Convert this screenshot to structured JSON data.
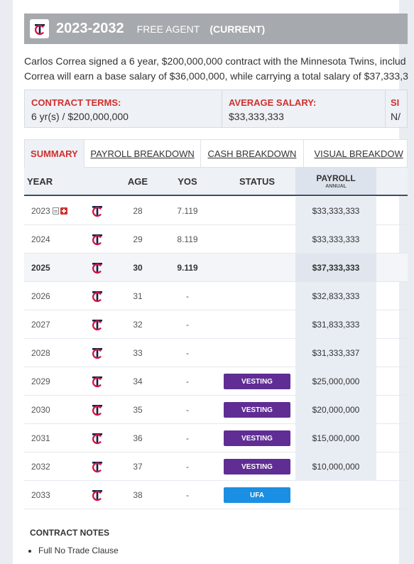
{
  "header": {
    "years": "2023-2032",
    "status": "FREE AGENT",
    "current": "(CURRENT)"
  },
  "description": {
    "line1": "Carlos Correa signed a 6 year, $200,000,000 contract with the Minnesota Twins, includ",
    "line2": "Correa will earn a base salary of $36,000,000, while carrying a total salary of $37,333,3"
  },
  "terms": {
    "contract_label": "CONTRACT TERMS:",
    "contract_value": "6 yr(s) / $200,000,000",
    "avg_label": "AVERAGE SALARY:",
    "avg_value": "$33,333,333",
    "third_label": "SI",
    "third_value": "N/"
  },
  "tabs": [
    "SUMMARY",
    "PAYROLL BREAKDOWN",
    "CASH BREAKDOWN",
    "VISUAL BREAKDOW"
  ],
  "table": {
    "headers": {
      "year": "YEAR",
      "age": "AGE",
      "yos": "YOS",
      "status": "STATUS",
      "payroll": "PAYROLL",
      "payroll_sub": "ANNUAL"
    },
    "rows": [
      {
        "year": "2023",
        "age": "28",
        "yos": "7.119",
        "status": "",
        "payroll": "$33,333,333"
      },
      {
        "year": "2024",
        "age": "29",
        "yos": "8.119",
        "status": "",
        "payroll": "$33,333,333"
      },
      {
        "year": "2025",
        "age": "30",
        "yos": "9.119",
        "status": "",
        "payroll": "$37,333,333"
      },
      {
        "year": "2026",
        "age": "31",
        "yos": "-",
        "status": "",
        "payroll": "$32,833,333"
      },
      {
        "year": "2027",
        "age": "32",
        "yos": "-",
        "status": "",
        "payroll": "$31,833,333"
      },
      {
        "year": "2028",
        "age": "33",
        "yos": "-",
        "status": "",
        "payroll": "$31,333,337"
      },
      {
        "year": "2029",
        "age": "34",
        "yos": "-",
        "status": "VESTING",
        "payroll": "$25,000,000"
      },
      {
        "year": "2030",
        "age": "35",
        "yos": "-",
        "status": "VESTING",
        "payroll": "$20,000,000"
      },
      {
        "year": "2031",
        "age": "36",
        "yos": "-",
        "status": "VESTING",
        "payroll": "$15,000,000"
      },
      {
        "year": "2032",
        "age": "37",
        "yos": "-",
        "status": "VESTING",
        "payroll": "$10,000,000"
      },
      {
        "year": "2033",
        "age": "38",
        "yos": "-",
        "status": "UFA",
        "payroll": ""
      }
    ]
  },
  "notes": {
    "title": "CONTRACT NOTES",
    "items": [
      "Full No Trade Clause"
    ]
  },
  "colors": {
    "accent_red": "#d0302e",
    "vesting": "#5f2d93",
    "ufa": "#1a8fe3",
    "header_bg": "#a6a9ad",
    "twins_navy": "#0c2340",
    "twins_red": "#d31145"
  },
  "icons": {
    "team_logo": "twins-logo-icon",
    "note": "note-icon",
    "add": "plus-icon"
  }
}
